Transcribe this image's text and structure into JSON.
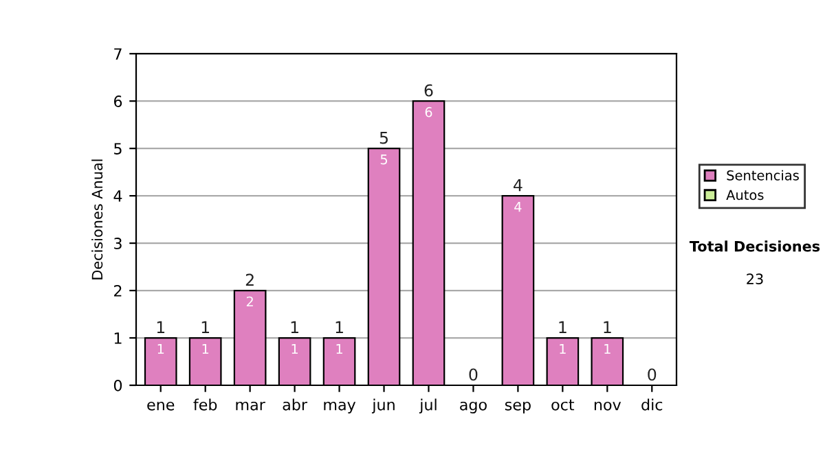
{
  "chart_data": {
    "type": "bar",
    "ylabel": "Decisiones Anual",
    "categories": [
      "ene",
      "feb",
      "mar",
      "abr",
      "may",
      "jun",
      "jul",
      "ago",
      "sep",
      "oct",
      "nov",
      "dic"
    ],
    "stacked": true,
    "series": [
      {
        "name": "Sentencias",
        "color": "#df80bf",
        "values": [
          1,
          1,
          2,
          1,
          1,
          5,
          6,
          0,
          4,
          1,
          1,
          0
        ],
        "value_labels": [
          "1",
          "1",
          "2",
          "1",
          "1",
          "5",
          "6",
          null,
          "4",
          "1",
          "1",
          null
        ]
      },
      {
        "name": "Autos",
        "color": "#ccee99",
        "values": [
          0,
          0,
          0,
          0,
          0,
          0,
          0,
          0,
          0,
          0,
          0,
          0
        ]
      }
    ],
    "totals": [
      "1",
      "1",
      "2",
      "1",
      "1",
      "5",
      "6",
      "0",
      "4",
      "1",
      "1",
      "0"
    ],
    "ylim": [
      0,
      7
    ],
    "yticks": [
      0,
      1,
      2,
      3,
      4,
      5,
      6,
      7
    ],
    "grid": "y",
    "legend": "right",
    "annotations": [
      "Total Decisiones",
      "23"
    ]
  }
}
